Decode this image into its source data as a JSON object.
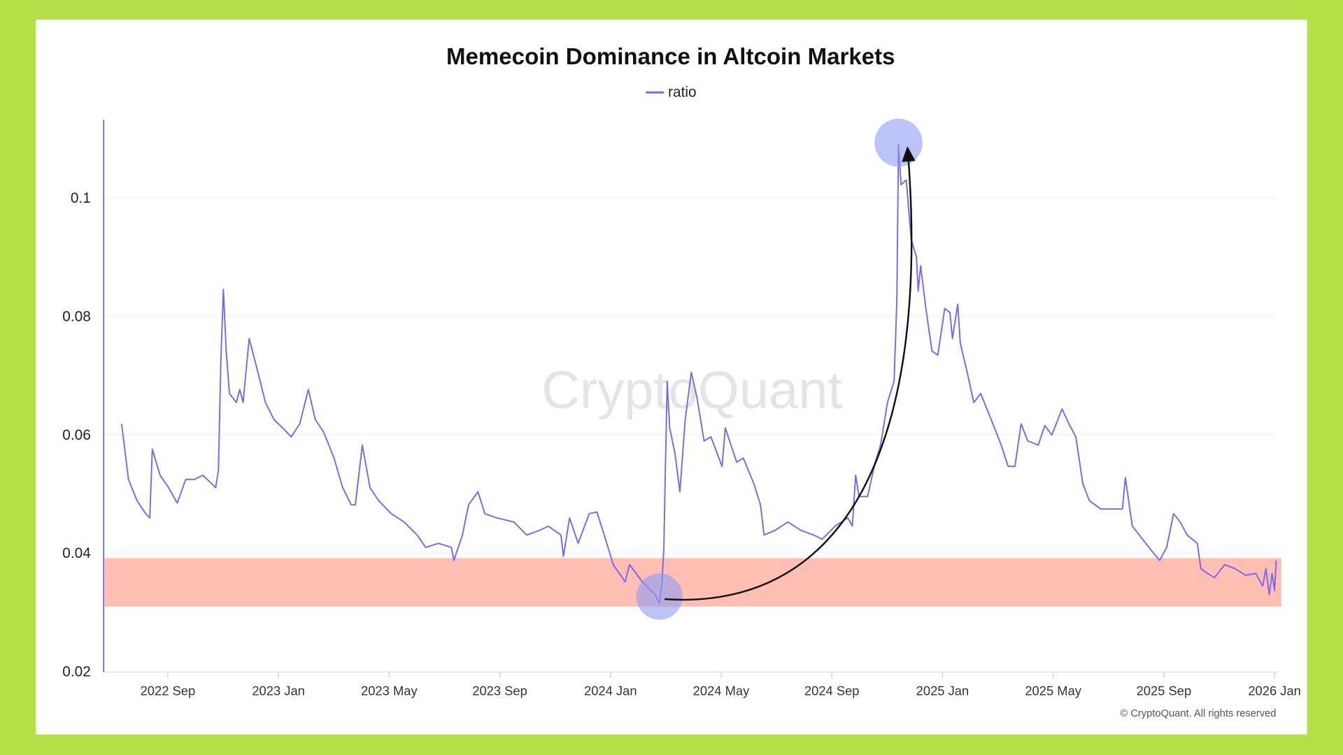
{
  "chart_data": {
    "type": "line",
    "title": "Memecoin Dominance in Altcoin Markets",
    "legend": {
      "label": "ratio",
      "position": "top-center"
    },
    "watermark": "CryptoQuant",
    "copyright": "© CryptoQuant. All rights reserved",
    "xlabel": "",
    "ylabel": "",
    "x_unit": "months since 2022 Sep 1",
    "xlim": [
      -2.04,
      40.06
    ],
    "ylim": [
      0.02,
      0.113
    ],
    "yticks": [
      {
        "v": 0.02,
        "label": "0.02"
      },
      {
        "v": 0.04,
        "label": "0.04"
      },
      {
        "v": 0.06,
        "label": "0.06"
      },
      {
        "v": 0.08,
        "label": "0.08"
      },
      {
        "v": 0.1,
        "label": "0.1"
      }
    ],
    "xticks": [
      {
        "m": 0,
        "label": "2022 Sep"
      },
      {
        "m": 4,
        "label": "2023 Jan"
      },
      {
        "m": 8,
        "label": "2023 May"
      },
      {
        "m": 12,
        "label": "2023 Sep"
      },
      {
        "m": 16,
        "label": "2024 Jan"
      },
      {
        "m": 20,
        "label": "2024 May"
      },
      {
        "m": 24,
        "label": "2024 Sep"
      },
      {
        "m": 28,
        "label": "2025 Jan"
      },
      {
        "m": 32,
        "label": "2025 May"
      },
      {
        "m": 36,
        "label": "2025 Sep"
      },
      {
        "m": 40,
        "label": "2026 Jan"
      }
    ],
    "grid": true,
    "colors": {
      "line": "#7b68ee",
      "band": "#ffb3a7",
      "highlight": "#8c9cf5",
      "arrow": "#111111",
      "frame": "#b5e04a"
    },
    "annotations": {
      "band": {
        "y_range": [
          0.0309,
          0.0391
        ]
      },
      "low_marker": {
        "m": 17.77,
        "v": 0.0326
      },
      "high_marker": {
        "m": 26.41,
        "v": 0.1093
      },
      "arrow": {
        "from": "low_marker",
        "to": "high_marker"
      }
    },
    "series": [
      {
        "name": "ratio",
        "points": [
          [
            -1.67,
            0.0618
          ],
          [
            -1.42,
            0.0524
          ],
          [
            -1.11,
            0.0488
          ],
          [
            -0.8,
            0.0466
          ],
          [
            -0.65,
            0.0459
          ],
          [
            -0.56,
            0.0575
          ],
          [
            -0.28,
            0.0531
          ],
          [
            0.03,
            0.051
          ],
          [
            0.34,
            0.0484
          ],
          [
            0.65,
            0.0524
          ],
          [
            0.96,
            0.0524
          ],
          [
            1.27,
            0.0531
          ],
          [
            1.73,
            0.051
          ],
          [
            1.83,
            0.0539
          ],
          [
            1.92,
            0.0726
          ],
          [
            2.01,
            0.0845
          ],
          [
            2.11,
            0.0741
          ],
          [
            2.23,
            0.0669
          ],
          [
            2.48,
            0.0654
          ],
          [
            2.6,
            0.0676
          ],
          [
            2.72,
            0.0654
          ],
          [
            2.94,
            0.0762
          ],
          [
            3.22,
            0.0712
          ],
          [
            3.53,
            0.0654
          ],
          [
            3.84,
            0.0625
          ],
          [
            4.15,
            0.0611
          ],
          [
            4.46,
            0.0596
          ],
          [
            4.77,
            0.0618
          ],
          [
            5.08,
            0.0676
          ],
          [
            5.33,
            0.0625
          ],
          [
            5.63,
            0.0604
          ],
          [
            6.01,
            0.056
          ],
          [
            6.32,
            0.051
          ],
          [
            6.63,
            0.0481
          ],
          [
            6.78,
            0.0481
          ],
          [
            7.03,
            0.0582
          ],
          [
            7.31,
            0.051
          ],
          [
            7.62,
            0.0488
          ],
          [
            8.08,
            0.0466
          ],
          [
            8.54,
            0.0452
          ],
          [
            9.01,
            0.043
          ],
          [
            9.32,
            0.0409
          ],
          [
            9.78,
            0.0416
          ],
          [
            10.25,
            0.0409
          ],
          [
            10.34,
            0.0387
          ],
          [
            10.65,
            0.043
          ],
          [
            10.87,
            0.0481
          ],
          [
            11.21,
            0.0503
          ],
          [
            11.46,
            0.0466
          ],
          [
            11.89,
            0.0459
          ],
          [
            12.51,
            0.0452
          ],
          [
            12.97,
            0.043
          ],
          [
            13.44,
            0.0438
          ],
          [
            13.75,
            0.0445
          ],
          [
            14.21,
            0.043
          ],
          [
            14.3,
            0.0394
          ],
          [
            14.52,
            0.0459
          ],
          [
            14.83,
            0.0416
          ],
          [
            15.23,
            0.0466
          ],
          [
            15.51,
            0.0469
          ],
          [
            15.82,
            0.0423
          ],
          [
            16.1,
            0.038
          ],
          [
            16.53,
            0.0351
          ],
          [
            16.69,
            0.038
          ],
          [
            17.15,
            0.0351
          ],
          [
            17.62,
            0.0329
          ],
          [
            17.77,
            0.0315
          ],
          [
            17.86,
            0.0351
          ],
          [
            17.93,
            0.0409
          ],
          [
            17.99,
            0.0553
          ],
          [
            18.05,
            0.069
          ],
          [
            18.14,
            0.0611
          ],
          [
            18.33,
            0.0568
          ],
          [
            18.51,
            0.0503
          ],
          [
            18.7,
            0.0625
          ],
          [
            18.92,
            0.0705
          ],
          [
            19.13,
            0.0661
          ],
          [
            19.38,
            0.0589
          ],
          [
            19.63,
            0.0596
          ],
          [
            20.03,
            0.0546
          ],
          [
            20.15,
            0.0611
          ],
          [
            20.56,
            0.0553
          ],
          [
            20.8,
            0.056
          ],
          [
            21.18,
            0.0517
          ],
          [
            21.42,
            0.0481
          ],
          [
            21.55,
            0.043
          ],
          [
            21.95,
            0.0438
          ],
          [
            22.41,
            0.0452
          ],
          [
            22.88,
            0.0438
          ],
          [
            23.34,
            0.043
          ],
          [
            23.65,
            0.0423
          ],
          [
            24.12,
            0.0445
          ],
          [
            24.58,
            0.0459
          ],
          [
            24.74,
            0.0445
          ],
          [
            24.86,
            0.0531
          ],
          [
            24.98,
            0.0495
          ],
          [
            25.29,
            0.0495
          ],
          [
            25.57,
            0.0553
          ],
          [
            25.76,
            0.0582
          ],
          [
            26.01,
            0.0654
          ],
          [
            26.25,
            0.069
          ],
          [
            26.35,
            0.0827
          ],
          [
            26.41,
            0.109
          ],
          [
            26.5,
            0.1022
          ],
          [
            26.69,
            0.103
          ],
          [
            26.87,
            0.0929
          ],
          [
            27.06,
            0.09
          ],
          [
            27.12,
            0.0842
          ],
          [
            27.21,
            0.0885
          ],
          [
            27.4,
            0.0813
          ],
          [
            27.62,
            0.0741
          ],
          [
            27.83,
            0.0734
          ],
          [
            28.08,
            0.0813
          ],
          [
            28.27,
            0.0806
          ],
          [
            28.36,
            0.0762
          ],
          [
            28.55,
            0.082
          ],
          [
            28.64,
            0.0755
          ],
          [
            28.89,
            0.0705
          ],
          [
            29.13,
            0.0654
          ],
          [
            29.38,
            0.0669
          ],
          [
            29.63,
            0.064
          ],
          [
            29.88,
            0.0611
          ],
          [
            30.12,
            0.0582
          ],
          [
            30.37,
            0.0546
          ],
          [
            30.62,
            0.0546
          ],
          [
            30.84,
            0.0618
          ],
          [
            31.08,
            0.0589
          ],
          [
            31.46,
            0.0582
          ],
          [
            31.7,
            0.0615
          ],
          [
            31.95,
            0.0599
          ],
          [
            32.32,
            0.0643
          ],
          [
            32.57,
            0.0618
          ],
          [
            32.82,
            0.0596
          ],
          [
            33.07,
            0.0517
          ],
          [
            33.31,
            0.0488
          ],
          [
            33.72,
            0.0474
          ],
          [
            34.19,
            0.0474
          ],
          [
            34.5,
            0.0474
          ],
          [
            34.61,
            0.0527
          ],
          [
            34.86,
            0.0445
          ],
          [
            35.23,
            0.0423
          ],
          [
            35.6,
            0.0401
          ],
          [
            35.85,
            0.0387
          ],
          [
            36.1,
            0.0409
          ],
          [
            36.35,
            0.0466
          ],
          [
            36.59,
            0.0452
          ],
          [
            36.84,
            0.043
          ],
          [
            37.21,
            0.0416
          ],
          [
            37.34,
            0.0373
          ],
          [
            37.58,
            0.0365
          ],
          [
            37.83,
            0.0358
          ],
          [
            38.2,
            0.038
          ],
          [
            38.58,
            0.0373
          ],
          [
            38.95,
            0.0362
          ],
          [
            39.32,
            0.0365
          ],
          [
            39.57,
            0.0344
          ],
          [
            39.69,
            0.0373
          ],
          [
            39.81,
            0.0329
          ],
          [
            39.91,
            0.0365
          ],
          [
            40.0,
            0.0336
          ],
          [
            40.06,
            0.0387
          ]
        ]
      }
    ]
  }
}
